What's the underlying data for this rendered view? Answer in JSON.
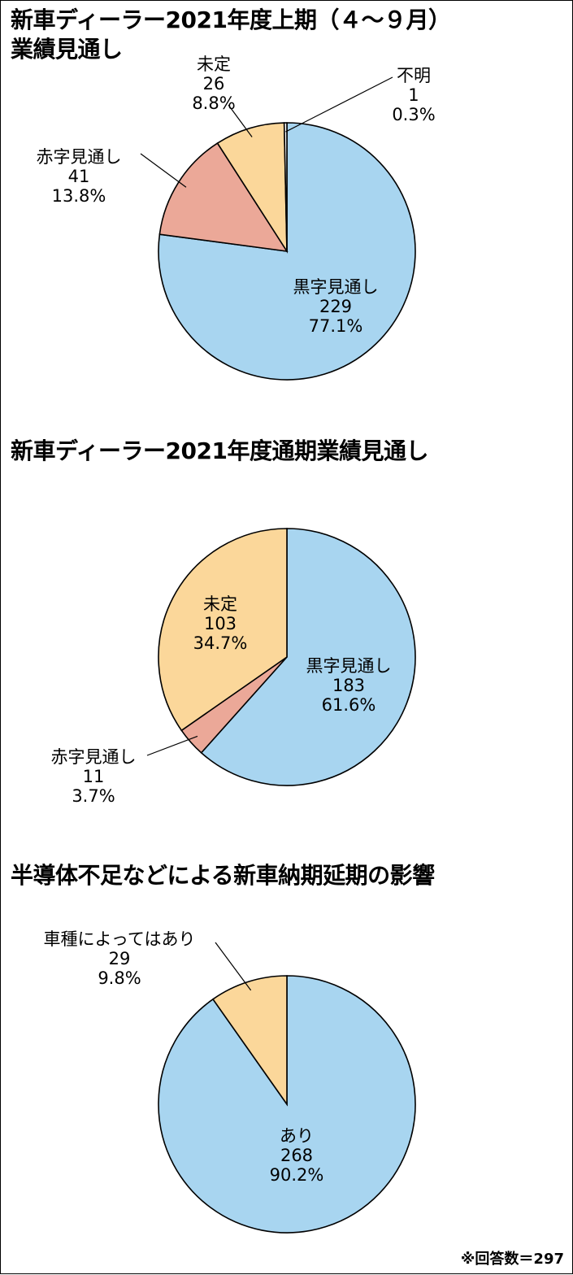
{
  "colors": {
    "profit": "#a8d5f0",
    "loss": "#eba898",
    "undecided": "#fbd79a",
    "unknown": "#ffffff",
    "outline": "#000000"
  },
  "chart_data": [
    {
      "type": "pie",
      "title": "新車ディーラー2021年度上期（４～９月）",
      "title_line2": "業績見通し",
      "slices": [
        {
          "label": "黒字見通し",
          "value": 229,
          "percent": "77.1%",
          "color": "#a8d5f0"
        },
        {
          "label": "赤字見通し",
          "value": 41,
          "percent": "13.8%",
          "color": "#eba898"
        },
        {
          "label": "未定",
          "value": 26,
          "percent": "8.8%",
          "color": "#fbd79a"
        },
        {
          "label": "不明",
          "value": 1,
          "percent": "0.3%",
          "color": "#ffffff"
        }
      ]
    },
    {
      "type": "pie",
      "title": "新車ディーラー2021年度通期業績見通し",
      "slices": [
        {
          "label": "黒字見通し",
          "value": 183,
          "percent": "61.6%",
          "color": "#a8d5f0"
        },
        {
          "label": "赤字見通し",
          "value": 11,
          "percent": "3.7%",
          "color": "#eba898"
        },
        {
          "label": "未定",
          "value": 103,
          "percent": "34.7%",
          "color": "#fbd79a"
        }
      ]
    },
    {
      "type": "pie",
      "title": "半導体不足などによる新車納期延期の影響",
      "slices": [
        {
          "label": "あり",
          "value": 268,
          "percent": "90.2%",
          "color": "#a8d5f0"
        },
        {
          "label": "車種によってはあり",
          "value": 29,
          "percent": "9.8%",
          "color": "#fbd79a"
        }
      ]
    }
  ],
  "footnote": "※回答数＝297"
}
